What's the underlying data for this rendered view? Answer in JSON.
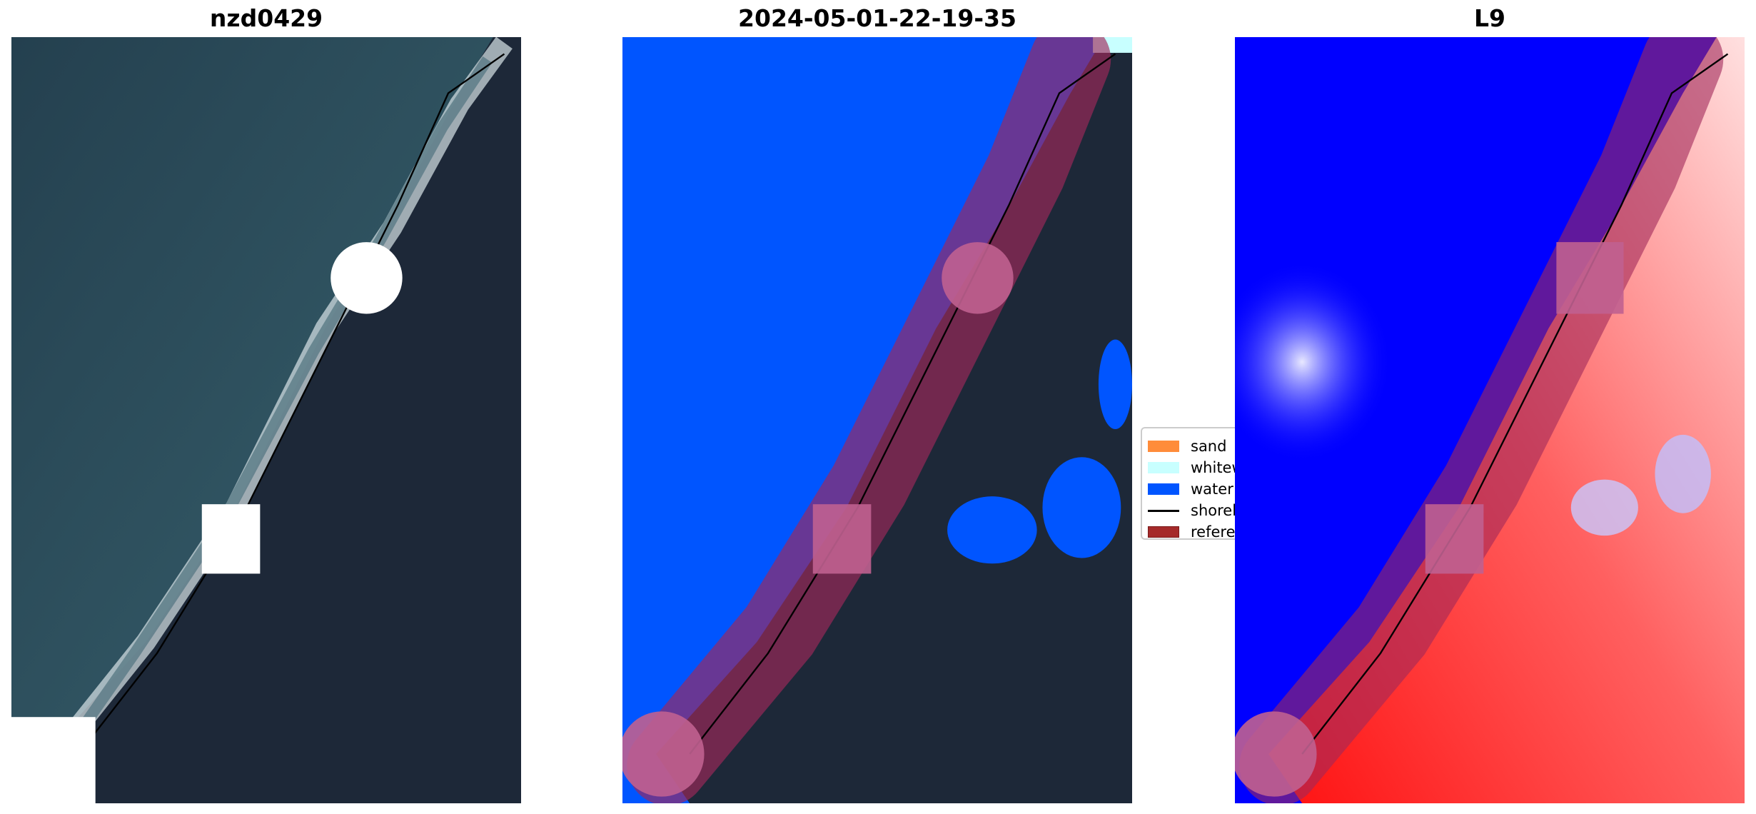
{
  "panels": [
    {
      "title": "nzd0429"
    },
    {
      "title": "2024-05-01-22-19-35"
    },
    {
      "title": "L9"
    }
  ],
  "legend": {
    "items": [
      {
        "label": "sand",
        "color": "#ff8c3a",
        "kind": "patch"
      },
      {
        "label": "whitewater",
        "color": "#c8ffff",
        "kind": "patch"
      },
      {
        "label": "water",
        "color": "#0055ff",
        "kind": "patch"
      },
      {
        "label": "shoreline",
        "color": "#000000",
        "kind": "line"
      },
      {
        "label": "reference",
        "color": "#a52a2a",
        "kind": "patch"
      }
    ]
  },
  "colors": {
    "ocean": "#2b4a5a",
    "land": "#1e2a3a",
    "water_class": "#0055ff",
    "index_water": "#0000ff",
    "index_land": "#ff2020",
    "buffer": "#a0285a"
  }
}
